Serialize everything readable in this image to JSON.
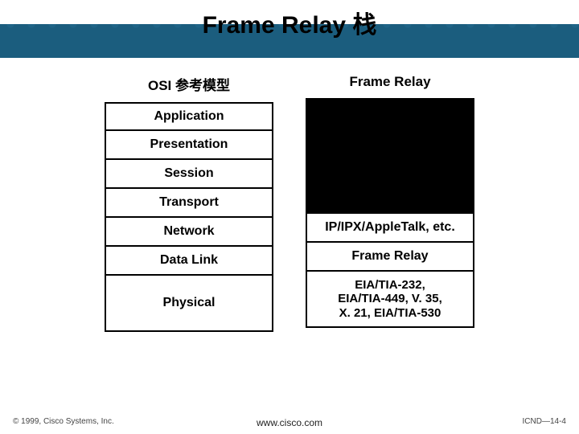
{
  "title": "Frame Relay 栈",
  "headers": {
    "left": "OSI 参考模型",
    "right": "Frame Relay"
  },
  "left_layers": [
    {
      "text": "Application",
      "h": "h-small"
    },
    {
      "text": "Presentation",
      "h": "h-small"
    },
    {
      "text": "Session",
      "h": "h-small"
    },
    {
      "text": "Transport",
      "h": "h-small"
    },
    {
      "text": "Network",
      "h": "h-small"
    },
    {
      "text": "Data Link",
      "h": "h-small"
    },
    {
      "text": "Physical",
      "h": "h-phys-l"
    }
  ],
  "right_layers": [
    {
      "empty": true,
      "h": "h-small"
    },
    {
      "empty": true,
      "h": "h-small"
    },
    {
      "empty": true,
      "h": "h-small"
    },
    {
      "empty": true,
      "h": "h-small"
    },
    {
      "text": "IP/IPX/AppleTalk, etc.",
      "h": "h-small"
    },
    {
      "text": "Frame Relay",
      "h": "h-small"
    },
    {
      "text": "EIA/TIA-232,\nEIA/TIA-449, V. 35,\nX. 21, EIA/TIA-530",
      "h": "h-phys-r"
    }
  ],
  "footer": {
    "left": "© 1999, Cisco Systems, Inc.",
    "center": "www.cisco.com",
    "right": "ICND—14-4"
  },
  "colors": {
    "band_dark": "#1b5d7e",
    "border": "#000000",
    "empty_fill": "#000000"
  }
}
